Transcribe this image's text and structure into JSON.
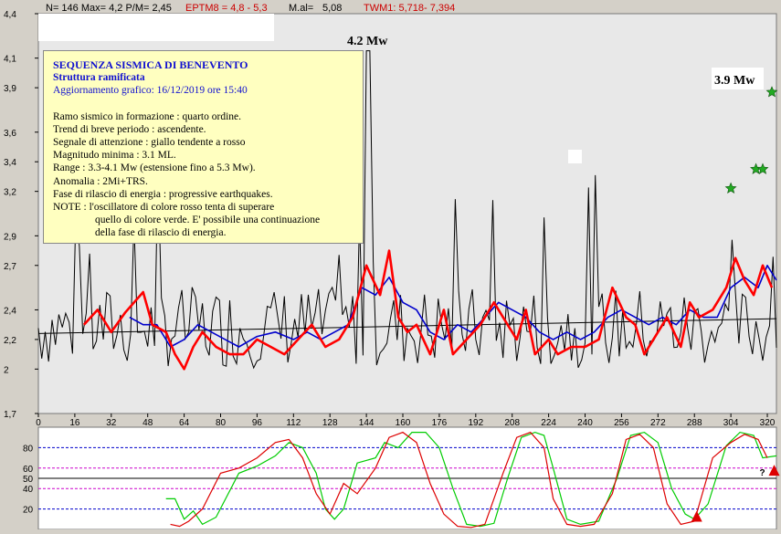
{
  "header": {
    "stats": "N= 146 Max= 4,2  P/M= 2,45",
    "eptm": "EPTM8 = 4,8 - 5,3",
    "mal_label": "M.al=",
    "mal_value": "5,08",
    "twm": "TWM1: 5,718- 7,394"
  },
  "note": {
    "title": "SEQUENZA SISMICA DI BENEVENTO",
    "subtitle": "Struttura ramificata",
    "update": "Aggiornamento grafico: 16/12/2019 ore 15:40",
    "lines": [
      "Ramo sismico in  formazione : quarto ordine.",
      "Trend di breve periodo : ascendente.",
      "Segnale di attenzione : giallo tendente a rosso",
      "Magnitudo minima : 3.1 ML.",
      "Range : 3.3-4.1 Mw (estensione fino a 5.3 Mw).",
      "Anomalia : 2Mi+TRS.",
      "Fase di rilascio di energia : progressive earthquakes.",
      "NOTE : l'oscillatore di colore rosso tenta di superare"
    ],
    "indented_lines": [
      "quello di colore verde. E' possibile una continuazione",
      "della fase di rilascio di energia."
    ]
  },
  "chart_data": [
    {
      "type": "line",
      "title": "",
      "xlabel": "",
      "ylabel": "",
      "xlim": [
        0,
        324
      ],
      "ylim": [
        1.7,
        4.4
      ],
      "x_ticks": [
        "0",
        "16",
        "32",
        "48",
        "64",
        "80",
        "96",
        "112",
        "128",
        "144",
        "160",
        "176",
        "192",
        "208",
        "224",
        "240",
        "256",
        "272",
        "288",
        "304",
        "320"
      ],
      "y_ticks": [
        "1,7",
        "2",
        "2,2",
        "2,4",
        "2,7",
        "2,9",
        "3,2",
        "3,4",
        "3,6",
        "3,9",
        "4,1",
        "4,4"
      ],
      "annotations": [
        "4.2 Mw",
        "3.9 Mw"
      ],
      "colors": {
        "magnitude": "#000000",
        "red_average": "#ff0000",
        "blue_average": "#0000cc",
        "trend": "#000000",
        "stars": "#22aa22"
      },
      "star_points": [
        {
          "x": 304,
          "y": 3.22
        },
        {
          "x": 315,
          "y": 3.35
        },
        {
          "x": 318,
          "y": 3.35
        },
        {
          "x": 322,
          "y": 3.87
        }
      ],
      "trend_line": {
        "x": [
          0,
          324
        ],
        "y": [
          2.24,
          2.34
        ]
      },
      "series": [
        {
          "key": "magnitude",
          "seed": 7,
          "x_range": [
            0,
            324
          ],
          "base": 2.2,
          "spread": 0.55
        },
        {
          "key": "red_average",
          "points": [
            [
              20,
              2.3
            ],
            [
              26,
              2.4
            ],
            [
              32,
              2.25
            ],
            [
              38,
              2.38
            ],
            [
              46,
              2.52
            ],
            [
              50,
              2.3
            ],
            [
              56,
              2.25
            ],
            [
              60,
              2.1
            ],
            [
              64,
              2.0
            ],
            [
              68,
              2.15
            ],
            [
              72,
              2.25
            ],
            [
              78,
              2.15
            ],
            [
              84,
              2.1
            ],
            [
              90,
              2.1
            ],
            [
              96,
              2.2
            ],
            [
              102,
              2.15
            ],
            [
              108,
              2.1
            ],
            [
              114,
              2.2
            ],
            [
              120,
              2.3
            ],
            [
              126,
              2.15
            ],
            [
              132,
              2.2
            ],
            [
              138,
              2.35
            ],
            [
              144,
              2.7
            ],
            [
              150,
              2.5
            ],
            [
              154,
              2.8
            ],
            [
              158,
              2.35
            ],
            [
              162,
              2.25
            ],
            [
              166,
              2.3
            ],
            [
              172,
              2.1
            ],
            [
              178,
              2.4
            ],
            [
              182,
              2.1
            ],
            [
              188,
              2.2
            ],
            [
              194,
              2.3
            ],
            [
              200,
              2.45
            ],
            [
              206,
              2.3
            ],
            [
              210,
              2.2
            ],
            [
              214,
              2.4
            ],
            [
              218,
              2.1
            ],
            [
              224,
              2.2
            ],
            [
              228,
              2.1
            ],
            [
              234,
              2.15
            ],
            [
              240,
              2.15
            ],
            [
              246,
              2.2
            ],
            [
              252,
              2.55
            ],
            [
              258,
              2.35
            ],
            [
              262,
              2.3
            ],
            [
              266,
              2.1
            ],
            [
              270,
              2.2
            ],
            [
              276,
              2.35
            ],
            [
              282,
              2.15
            ],
            [
              286,
              2.45
            ],
            [
              290,
              2.35
            ],
            [
              296,
              2.4
            ],
            [
              302,
              2.55
            ],
            [
              306,
              2.75
            ],
            [
              310,
              2.6
            ],
            [
              314,
              2.5
            ],
            [
              318,
              2.7
            ],
            [
              322,
              2.55
            ]
          ]
        },
        {
          "key": "blue_average",
          "points": [
            [
              40,
              2.35
            ],
            [
              46,
              2.3
            ],
            [
              52,
              2.3
            ],
            [
              58,
              2.15
            ],
            [
              64,
              2.2
            ],
            [
              70,
              2.3
            ],
            [
              76,
              2.25
            ],
            [
              82,
              2.2
            ],
            [
              88,
              2.15
            ],
            [
              96,
              2.22
            ],
            [
              104,
              2.25
            ],
            [
              112,
              2.2
            ],
            [
              118,
              2.25
            ],
            [
              124,
              2.2
            ],
            [
              130,
              2.25
            ],
            [
              136,
              2.3
            ],
            [
              142,
              2.55
            ],
            [
              148,
              2.5
            ],
            [
              154,
              2.62
            ],
            [
              160,
              2.45
            ],
            [
              166,
              2.4
            ],
            [
              172,
              2.25
            ],
            [
              178,
              2.2
            ],
            [
              184,
              2.3
            ],
            [
              190,
              2.25
            ],
            [
              196,
              2.35
            ],
            [
              202,
              2.45
            ],
            [
              208,
              2.4
            ],
            [
              214,
              2.35
            ],
            [
              220,
              2.25
            ],
            [
              226,
              2.2
            ],
            [
              232,
              2.25
            ],
            [
              238,
              2.2
            ],
            [
              244,
              2.25
            ],
            [
              250,
              2.35
            ],
            [
              256,
              2.4
            ],
            [
              262,
              2.35
            ],
            [
              268,
              2.3
            ],
            [
              274,
              2.35
            ],
            [
              280,
              2.3
            ],
            [
              286,
              2.4
            ],
            [
              292,
              2.35
            ],
            [
              298,
              2.35
            ],
            [
              304,
              2.55
            ],
            [
              310,
              2.62
            ],
            [
              316,
              2.55
            ],
            [
              320,
              2.7
            ],
            [
              324,
              2.6
            ]
          ]
        }
      ]
    },
    {
      "type": "line",
      "title": "",
      "xlim": [
        0,
        324
      ],
      "ylim": [
        0,
        100
      ],
      "y_ticks": [
        "80",
        "60",
        "50",
        "40",
        "20"
      ],
      "reference_lines": [
        80,
        60,
        50,
        40,
        20
      ],
      "markers": [
        {
          "x": 289,
          "y": 12,
          "shape": "triangle"
        },
        {
          "x": 323,
          "y": 57,
          "shape": "triangle",
          "label": "?"
        }
      ],
      "series": [
        {
          "key": "green_oscillator",
          "color": "#00cc00",
          "points": [
            [
              56,
              30
            ],
            [
              60,
              30
            ],
            [
              64,
              10
            ],
            [
              68,
              18
            ],
            [
              72,
              5
            ],
            [
              78,
              12
            ],
            [
              88,
              55
            ],
            [
              96,
              62
            ],
            [
              104,
              72
            ],
            [
              110,
              85
            ],
            [
              116,
              80
            ],
            [
              122,
              55
            ],
            [
              126,
              20
            ],
            [
              130,
              10
            ],
            [
              134,
              20
            ],
            [
              140,
              65
            ],
            [
              148,
              70
            ],
            [
              152,
              85
            ],
            [
              158,
              80
            ],
            [
              164,
              95
            ],
            [
              170,
              95
            ],
            [
              176,
              80
            ],
            [
              182,
              40
            ],
            [
              188,
              5
            ],
            [
              194,
              3
            ],
            [
              200,
              6
            ],
            [
              206,
              50
            ],
            [
              212,
              90
            ],
            [
              218,
              95
            ],
            [
              222,
              92
            ],
            [
              226,
              60
            ],
            [
              232,
              10
            ],
            [
              238,
              5
            ],
            [
              246,
              8
            ],
            [
              254,
              50
            ],
            [
              260,
              92
            ],
            [
              266,
              95
            ],
            [
              272,
              85
            ],
            [
              278,
              40
            ],
            [
              284,
              15
            ],
            [
              288,
              10
            ],
            [
              294,
              25
            ],
            [
              302,
              82
            ],
            [
              308,
              95
            ],
            [
              314,
              92
            ],
            [
              318,
              70
            ],
            [
              324,
              72
            ]
          ]
        },
        {
          "key": "red_oscillator",
          "color": "#dd0000",
          "points": [
            [
              58,
              5
            ],
            [
              62,
              3
            ],
            [
              66,
              8
            ],
            [
              72,
              20
            ],
            [
              80,
              55
            ],
            [
              88,
              60
            ],
            [
              96,
              70
            ],
            [
              104,
              85
            ],
            [
              110,
              88
            ],
            [
              116,
              70
            ],
            [
              122,
              35
            ],
            [
              128,
              15
            ],
            [
              134,
              45
            ],
            [
              140,
              35
            ],
            [
              148,
              60
            ],
            [
              154,
              90
            ],
            [
              160,
              95
            ],
            [
              166,
              85
            ],
            [
              172,
              45
            ],
            [
              178,
              15
            ],
            [
              184,
              3
            ],
            [
              190,
              2
            ],
            [
              196,
              5
            ],
            [
              204,
              55
            ],
            [
              210,
              90
            ],
            [
              216,
              95
            ],
            [
              222,
              80
            ],
            [
              226,
              30
            ],
            [
              232,
              5
            ],
            [
              238,
              3
            ],
            [
              244,
              5
            ],
            [
              252,
              35
            ],
            [
              258,
              88
            ],
            [
              264,
              93
            ],
            [
              270,
              80
            ],
            [
              276,
              25
            ],
            [
              282,
              5
            ],
            [
              288,
              8
            ],
            [
              296,
              70
            ],
            [
              304,
              85
            ],
            [
              310,
              93
            ],
            [
              316,
              88
            ],
            [
              320,
              70
            ]
          ]
        }
      ]
    }
  ]
}
